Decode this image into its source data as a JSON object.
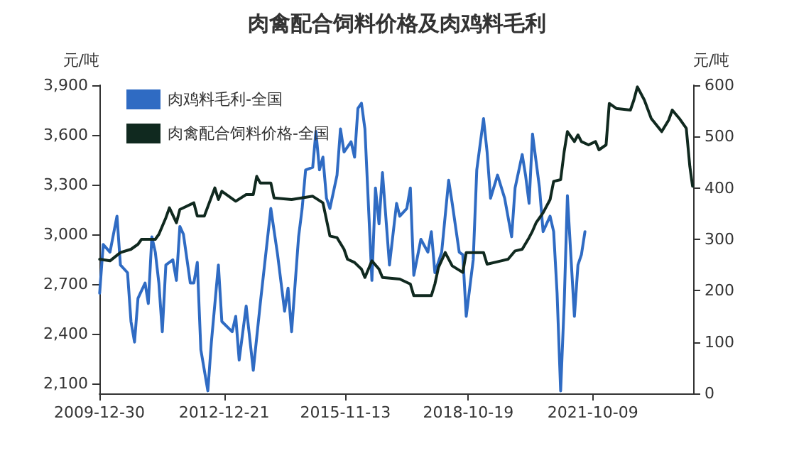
{
  "chart_data": {
    "type": "line",
    "title": "肉禽配合饲料价格及肉鸡料毛利",
    "ylabel": "元/吨",
    "y2label": "元/吨",
    "xlim": [
      "2009-12-30",
      "2024-03-01"
    ],
    "xticks": [
      "2009-12-30",
      "2012-12-21",
      "2015-11-13",
      "2018-10-19",
      "2021-10-09"
    ],
    "ylim": [
      2040,
      3900
    ],
    "yticks": [
      {
        "value": 2100,
        "label": "2,100"
      },
      {
        "value": 2400,
        "label": "2,400"
      },
      {
        "value": 2700,
        "label": "2,700"
      },
      {
        "value": 3000,
        "label": "3,000"
      },
      {
        "value": 3300,
        "label": "3,300"
      },
      {
        "value": 3600,
        "label": "3,600"
      },
      {
        "value": 3900,
        "label": "3,900"
      }
    ],
    "y2lim": [
      0,
      600
    ],
    "y2ticks": [
      0,
      100,
      200,
      300,
      400,
      500,
      600
    ],
    "legend": "top left",
    "grid": false,
    "marker": "none",
    "line_style": "solid",
    "series": [
      {
        "name": "肉鸡料毛利-全国",
        "color": "#2f6bc3",
        "axis": "y2",
        "x": [
          "2010-01",
          "2010-02",
          "2010-04",
          "2010-06",
          "2010-07",
          "2010-09",
          "2010-10",
          "2010-11",
          "2010-12",
          "2011-02",
          "2011-03",
          "2011-04",
          "2011-05",
          "2011-06",
          "2011-07",
          "2011-08",
          "2011-10",
          "2011-11",
          "2011-12",
          "2012-01",
          "2012-03",
          "2012-04",
          "2012-05",
          "2012-06",
          "2012-08",
          "2012-09",
          "2012-11",
          "2012-12",
          "2013-03",
          "2013-04",
          "2013-05",
          "2013-07",
          "2013-09",
          "2013-11",
          "2014-02",
          "2014-04",
          "2014-06",
          "2014-07",
          "2014-08",
          "2014-10",
          "2014-11",
          "2014-12",
          "2015-02",
          "2015-03",
          "2015-04",
          "2015-05",
          "2015-06",
          "2015-07",
          "2015-09",
          "2015-10",
          "2015-11",
          "2016-01",
          "2016-02",
          "2016-03",
          "2016-04",
          "2016-05",
          "2016-07",
          "2016-08",
          "2016-09",
          "2016-10",
          "2016-12",
          "2017-02",
          "2017-03",
          "2017-05",
          "2017-06",
          "2017-07",
          "2017-09",
          "2017-11",
          "2017-12",
          "2018-01",
          "2018-03",
          "2018-05",
          "2018-06",
          "2018-08",
          "2018-09",
          "2018-10",
          "2018-12",
          "2019-01",
          "2019-03",
          "2019-04",
          "2019-05",
          "2019-07",
          "2019-09",
          "2019-11",
          "2019-12",
          "2020-02",
          "2020-03",
          "2020-04",
          "2020-05",
          "2020-07",
          "2020-08",
          "2020-10",
          "2020-11",
          "2020-12",
          "2021-01",
          "2021-02",
          "2021-03",
          "2021-05",
          "2021-06",
          "2021-07",
          "2021-08"
        ],
        "values": [
          195,
          290,
          275,
          345,
          250,
          235,
          140,
          100,
          185,
          215,
          175,
          305,
          275,
          215,
          120,
          250,
          260,
          220,
          325,
          310,
          215,
          215,
          255,
          85,
          5,
          100,
          250,
          140,
          120,
          150,
          65,
          170,
          45,
          175,
          360,
          270,
          160,
          205,
          120,
          305,
          360,
          435,
          440,
          510,
          435,
          460,
          380,
          360,
          425,
          515,
          470,
          490,
          460,
          555,
          565,
          515,
          220,
          400,
          330,
          430,
          250,
          370,
          345,
          360,
          400,
          230,
          300,
          275,
          315,
          235,
          275,
          415,
          370,
          275,
          270,
          150,
          260,
          435,
          535,
          470,
          380,
          425,
          380,
          305,
          400,
          465,
          425,
          370,
          505,
          400,
          315,
          345,
          315,
          195,
          5,
          175,
          385,
          150,
          250,
          270,
          315
        ]
      },
      {
        "name": "肉禽配合饲料价格-全国",
        "color": "#10291f",
        "x": [
          "2010-01",
          "2010-04",
          "2010-07",
          "2010-10",
          "2010-12",
          "2011-01",
          "2011-05",
          "2011-06",
          "2011-08",
          "2011-09",
          "2011-11",
          "2011-12",
          "2012-04",
          "2012-05",
          "2012-07",
          "2012-10",
          "2012-11",
          "2012-12",
          "2013-04",
          "2013-07",
          "2013-09",
          "2013-10",
          "2013-11",
          "2014-02",
          "2014-03",
          "2014-08",
          "2015-02",
          "2015-05",
          "2015-07",
          "2015-09",
          "2015-11",
          "2015-12",
          "2016-02",
          "2016-04",
          "2016-05",
          "2016-07",
          "2016-09",
          "2016-10",
          "2017-03",
          "2017-06",
          "2017-07",
          "2017-12",
          "2018-01",
          "2018-02",
          "2018-04",
          "2018-06",
          "2018-09",
          "2018-10",
          "2019-03",
          "2019-04",
          "2019-08",
          "2019-10",
          "2019-12",
          "2020-02",
          "2020-04",
          "2020-05",
          "2020-06",
          "2020-08",
          "2020-10",
          "2020-11",
          "2021-01",
          "2021-02",
          "2021-03",
          "2021-05",
          "2021-06",
          "2021-07",
          "2021-09",
          "2021-11",
          "2021-12",
          "2022-02",
          "2022-03",
          "2022-05",
          "2022-09",
          "2022-10",
          "2022-11",
          "2023-01",
          "2023-03",
          "2023-06",
          "2023-08",
          "2023-09",
          "2023-11",
          "2024-01",
          "2024-02",
          "2024-02-25"
        ],
        "values": [
          2850,
          2840,
          2890,
          2910,
          2940,
          2970,
          2970,
          3000,
          3100,
          3160,
          3070,
          3150,
          3190,
          3110,
          3110,
          3280,
          3210,
          3260,
          3200,
          3240,
          3240,
          3350,
          3310,
          3310,
          3220,
          3210,
          3230,
          3190,
          2990,
          2980,
          2910,
          2850,
          2830,
          2790,
          2740,
          2840,
          2790,
          2740,
          2730,
          2700,
          2630,
          2630,
          2700,
          2800,
          2890,
          2810,
          2770,
          2890,
          2890,
          2820,
          2840,
          2850,
          2900,
          2910,
          2980,
          3020,
          3070,
          3130,
          3210,
          3320,
          3330,
          3500,
          3620,
          3560,
          3600,
          3560,
          3540,
          3560,
          3510,
          3540,
          3790,
          3760,
          3750,
          3810,
          3890,
          3810,
          3700,
          3620,
          3690,
          3750,
          3700,
          3640,
          3410,
          3290
        ]
      }
    ]
  }
}
